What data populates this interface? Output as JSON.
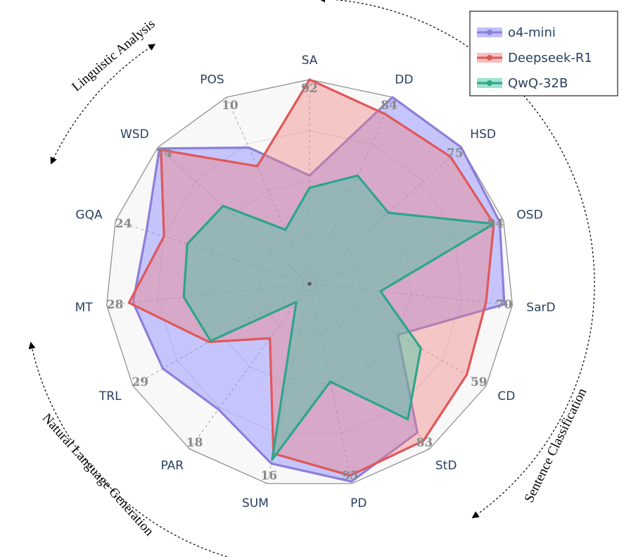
{
  "chart_data": {
    "type": "radar",
    "axes": [
      "SA",
      "DD",
      "HSD",
      "OSD",
      "SarD",
      "CD",
      "StD",
      "PD",
      "SUM",
      "PAR",
      "TRL",
      "MT",
      "GQA",
      "WSD",
      "POS"
    ],
    "axis_max_labels": [
      "92",
      "84",
      "75",
      "94",
      "70",
      "59",
      "83",
      "95",
      "16",
      "18",
      "29",
      "28",
      "24",
      "74",
      "10"
    ],
    "axis_max": [
      92,
      84,
      75,
      94,
      70,
      59,
      83,
      95,
      16,
      18,
      29,
      28,
      24,
      74,
      10
    ],
    "radial_range": [
      0,
      1
    ],
    "grid": true,
    "legend_position": "top-right",
    "series": [
      {
        "name": "o4-mini",
        "color": "#7f7fff",
        "stroke": "#8c7fd8",
        "values": [
          0.53,
          1.0,
          1.0,
          0.98,
          0.96,
          0.5,
          0.9,
          0.99,
          0.9,
          0.76,
          0.83,
          0.87,
          0.84,
          0.99,
          0.73
        ]
      },
      {
        "name": "Deepseek-R1",
        "color": "#f08080",
        "stroke": "#e15759",
        "values": [
          1.0,
          0.91,
          0.93,
          0.95,
          0.87,
          0.89,
          0.95,
          0.96,
          0.85,
          0.33,
          0.57,
          0.89,
          0.75,
          0.98,
          0.63
        ]
      },
      {
        "name": "QwQ-32B",
        "color": "#3cc8a0",
        "stroke": "#2ea58a",
        "values": [
          0.47,
          0.58,
          0.52,
          0.95,
          0.35,
          0.63,
          0.82,
          0.49,
          0.88,
          0.11,
          0.56,
          0.62,
          0.63,
          0.57,
          0.29
        ]
      }
    ],
    "groups": [
      "Linguistic Analysis",
      "Sentence Classification",
      "Natural Language Generation"
    ]
  }
}
